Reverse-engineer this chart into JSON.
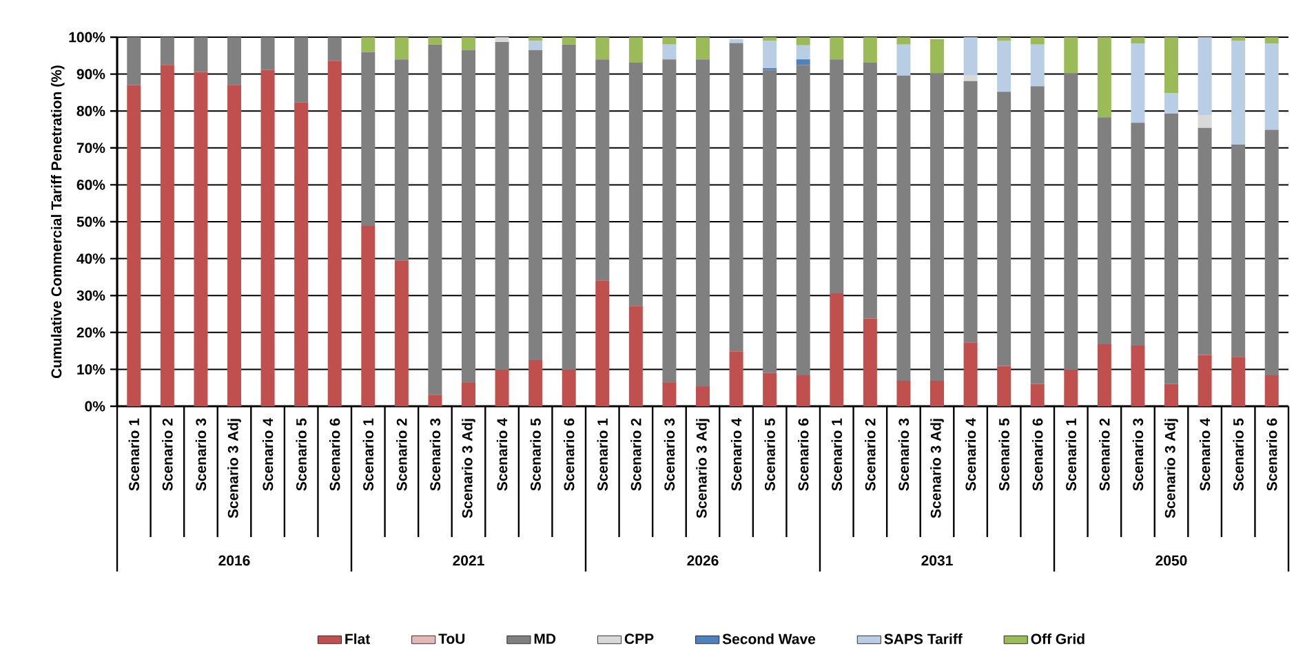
{
  "chart_data": {
    "type": "bar",
    "stacked": true,
    "ylabel": "Cumulative Commercial Tariff Penetration (%)",
    "categories": [
      "Scenario 1",
      "Scenario 2",
      "Scenario 3",
      "Scenario 3 Adj",
      "Scenario 4",
      "Scenario 5",
      "Scenario 6",
      "Scenario 1",
      "Scenario 2",
      "Scenario 3",
      "Scenario 3 Adj",
      "Scenario 4",
      "Scenario 5",
      "Scenario 6",
      "Scenario 1",
      "Scenario 2",
      "Scenario 3",
      "Scenario 3 Adj",
      "Scenario 4",
      "Scenario 5",
      "Scenario 6",
      "Scenario 1",
      "Scenario 2",
      "Scenario 3",
      "Scenario 3 Adj",
      "Scenario 4",
      "Scenario 5",
      "Scenario 6",
      "Scenario 1",
      "Scenario 2",
      "Scenario 3",
      "Scenario 3 Adj",
      "Scenario 4",
      "Scenario 5",
      "Scenario 6"
    ],
    "annotations": [
      "2016",
      "2021",
      "2026",
      "2031",
      "2050"
    ],
    "series": [
      {
        "name": "Flat",
        "color": "#c0504d",
        "values": [
          87,
          92.5,
          90.6,
          87.1,
          91.1,
          82.3,
          93.6,
          48.9,
          39.5,
          3.1,
          6.5,
          9.9,
          12.5,
          9.9,
          34.1,
          27.2,
          6.5,
          5.4,
          14.9,
          9.0,
          8.4,
          30.6,
          23.8,
          6.9,
          6.9,
          17.3,
          10.9,
          6.0,
          9.9,
          16.8,
          16.4,
          6.0,
          13.9,
          13.4,
          8.4
        ]
      },
      {
        "name": "ToU",
        "color": "#e6b9b8",
        "values": [
          0,
          0,
          0,
          0,
          0,
          0,
          0,
          0,
          0,
          0,
          0,
          0,
          0,
          0,
          0,
          0,
          0,
          0,
          0,
          0,
          0,
          0,
          0,
          0,
          0,
          0,
          0,
          0,
          0,
          0,
          0,
          0,
          0,
          0,
          0
        ]
      },
      {
        "name": "MD",
        "color": "#808080",
        "values": [
          13,
          7.5,
          9.4,
          12.9,
          8.9,
          17.7,
          6.4,
          47.1,
          54.5,
          94.9,
          90,
          88.8,
          84,
          88.1,
          59.9,
          65.9,
          87.5,
          88.6,
          83.5,
          82.1,
          84.1,
          63.4,
          69.3,
          82.7,
          83.3,
          70.8,
          74.3,
          80.7,
          80.3,
          61.5,
          60.4,
          73.3,
          61.5,
          57.5,
          66.5
        ]
      },
      {
        "name": "CPP",
        "color": "#d9d9d9",
        "values": [
          0,
          0,
          0,
          0,
          0,
          0,
          0,
          0,
          0,
          0,
          0,
          1.3,
          0,
          0,
          0,
          0,
          0,
          0,
          null,
          0,
          0,
          0,
          0,
          0,
          null,
          1.5,
          0,
          0,
          0,
          0,
          0,
          0,
          3.5,
          0,
          0
        ]
      },
      {
        "name": "Second Wave",
        "color": "#4f81bd",
        "values": [
          0,
          0,
          0,
          0,
          0,
          0,
          0,
          0,
          0,
          0,
          0,
          0,
          0,
          0,
          0,
          0,
          0,
          0,
          0,
          0.5,
          1.5,
          0,
          0,
          0,
          0,
          0,
          0,
          0,
          0,
          0,
          0,
          0,
          0,
          0,
          0
        ]
      },
      {
        "name": "SAPS Tariff",
        "color": "#b9cde5",
        "values": [
          0,
          0,
          0,
          0,
          0,
          0,
          0,
          0,
          0,
          0,
          0,
          0,
          2.5,
          0,
          0,
          0,
          4,
          0,
          1.1,
          7.4,
          3.8,
          0,
          0,
          8.4,
          0,
          10.4,
          13.8,
          11.3,
          0,
          0,
          21.5,
          5.5,
          21.1,
          28.1,
          23.4
        ]
      },
      {
        "name": "Off Grid",
        "color": "#9bbb59",
        "values": [
          0,
          0,
          0,
          0,
          0,
          0,
          0,
          4,
          6,
          2,
          3.5,
          0,
          1,
          2,
          6,
          6.9,
          2,
          6,
          0,
          1,
          2.2,
          6,
          6.9,
          2,
          9.3,
          0,
          1,
          2,
          9.8,
          21.7,
          1.7,
          15.2,
          0,
          1,
          1.7
        ]
      }
    ],
    "ylim": [
      0,
      100
    ],
    "yticks": [
      {
        "value": 0,
        "label": "0%"
      },
      {
        "value": 10,
        "label": "10%"
      },
      {
        "value": 20,
        "label": "20%"
      },
      {
        "value": 30,
        "label": "30%"
      },
      {
        "value": 40,
        "label": "40%"
      },
      {
        "value": 50,
        "label": "50%"
      },
      {
        "value": 60,
        "label": "60%"
      },
      {
        "value": 70,
        "label": "70%"
      },
      {
        "value": 80,
        "label": "80%"
      },
      {
        "value": 90,
        "label": "90%"
      },
      {
        "value": 100,
        "label": "100%"
      }
    ],
    "grid": "y",
    "legend": "bottom"
  }
}
